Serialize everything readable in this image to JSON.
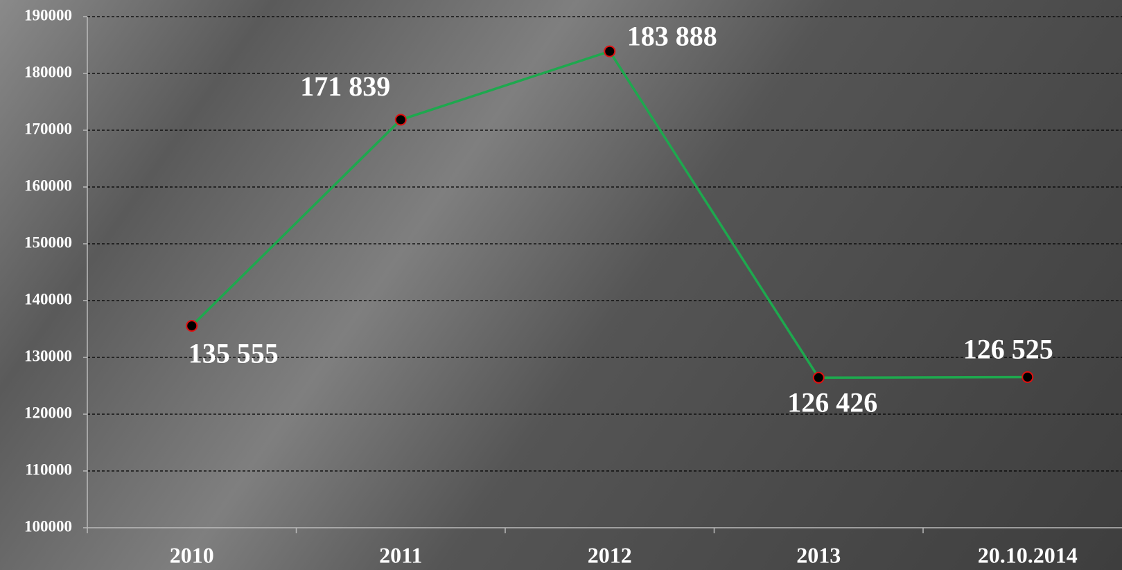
{
  "chart_data": {
    "type": "line",
    "categories": [
      "2010",
      "2011",
      "2012",
      "2013",
      "20.10.2014"
    ],
    "values": [
      135555,
      171839,
      183888,
      126426,
      126525
    ],
    "value_labels": [
      "135 555",
      "171 839",
      "183 888",
      "126 426",
      "126 525"
    ],
    "color": "#1ea84e",
    "marker_fill": "#000000",
    "marker_edge": "#e01010",
    "ylim": [
      100000,
      190000
    ],
    "yticks": [
      100000,
      110000,
      120000,
      130000,
      140000,
      150000,
      160000,
      170000,
      180000,
      190000
    ],
    "grid": true
  }
}
